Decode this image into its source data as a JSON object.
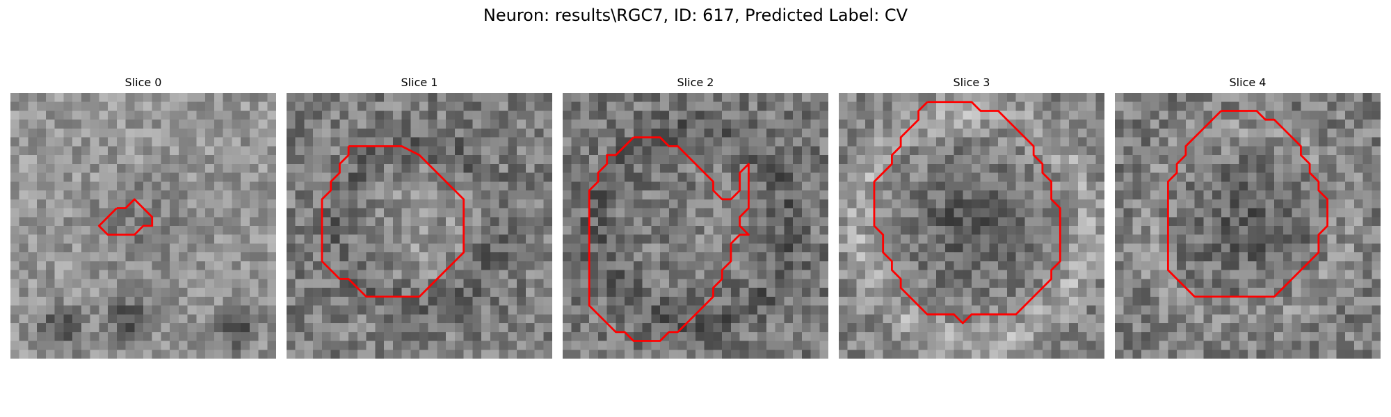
{
  "figure": {
    "title": "Neuron: results\\RGC7, ID: 617, Predicted Label: CV"
  },
  "contour_color": "#ff0000",
  "slices": [
    {
      "title": "Slice 0",
      "contour": [
        [
          12,
          13
        ],
        [
          13,
          13
        ],
        [
          14,
          12
        ],
        [
          15,
          13
        ],
        [
          16,
          14
        ],
        [
          16,
          15
        ],
        [
          15,
          15
        ],
        [
          14,
          16
        ],
        [
          13,
          16
        ],
        [
          12,
          16
        ],
        [
          11,
          16
        ],
        [
          10,
          15
        ],
        [
          11,
          14
        ],
        [
          12,
          13
        ]
      ]
    },
    {
      "title": "Slice 1",
      "contour": [
        [
          7,
          6
        ],
        [
          8,
          6
        ],
        [
          9,
          6
        ],
        [
          10,
          6
        ],
        [
          11,
          6
        ],
        [
          12,
          6
        ],
        [
          13,
          6
        ],
        [
          15,
          7
        ],
        [
          16,
          8
        ],
        [
          17,
          9
        ],
        [
          18,
          10
        ],
        [
          19,
          11
        ],
        [
          20,
          12
        ],
        [
          20,
          13
        ],
        [
          20,
          14
        ],
        [
          20,
          15
        ],
        [
          20,
          16
        ],
        [
          20,
          17
        ],
        [
          20,
          18
        ],
        [
          19,
          19
        ],
        [
          18,
          20
        ],
        [
          17,
          21
        ],
        [
          16,
          22
        ],
        [
          15,
          23
        ],
        [
          14,
          23
        ],
        [
          13,
          23
        ],
        [
          12,
          23
        ],
        [
          11,
          23
        ],
        [
          10,
          23
        ],
        [
          9,
          23
        ],
        [
          8,
          22
        ],
        [
          7,
          21
        ],
        [
          6,
          21
        ],
        [
          5,
          20
        ],
        [
          4,
          19
        ],
        [
          4,
          18
        ],
        [
          4,
          17
        ],
        [
          4,
          16
        ],
        [
          4,
          15
        ],
        [
          4,
          14
        ],
        [
          4,
          13
        ],
        [
          4,
          12
        ],
        [
          5,
          11
        ],
        [
          5,
          10
        ],
        [
          6,
          9
        ],
        [
          6,
          8
        ],
        [
          7,
          7
        ],
        [
          7,
          6
        ]
      ]
    },
    {
      "title": "Slice 2",
      "contour": [
        [
          8,
          5
        ],
        [
          9,
          5
        ],
        [
          10,
          5
        ],
        [
          11,
          5
        ],
        [
          12,
          6
        ],
        [
          13,
          6
        ],
        [
          14,
          7
        ],
        [
          15,
          8
        ],
        [
          16,
          9
        ],
        [
          17,
          10
        ],
        [
          17,
          11
        ],
        [
          18,
          12
        ],
        [
          19,
          12
        ],
        [
          20,
          11
        ],
        [
          20,
          10
        ],
        [
          20,
          9
        ],
        [
          21,
          8
        ],
        [
          21,
          9
        ],
        [
          21,
          10
        ],
        [
          21,
          11
        ],
        [
          21,
          12
        ],
        [
          21,
          13
        ],
        [
          20,
          14
        ],
        [
          20,
          15
        ],
        [
          21,
          16
        ],
        [
          20,
          16
        ],
        [
          19,
          17
        ],
        [
          19,
          18
        ],
        [
          19,
          19
        ],
        [
          18,
          20
        ],
        [
          18,
          21
        ],
        [
          17,
          22
        ],
        [
          17,
          23
        ],
        [
          16,
          24
        ],
        [
          15,
          25
        ],
        [
          14,
          26
        ],
        [
          13,
          27
        ],
        [
          12,
          27
        ],
        [
          11,
          28
        ],
        [
          10,
          28
        ],
        [
          9,
          28
        ],
        [
          8,
          28
        ],
        [
          7,
          27
        ],
        [
          6,
          27
        ],
        [
          5,
          26
        ],
        [
          4,
          25
        ],
        [
          3,
          24
        ],
        [
          3,
          23
        ],
        [
          3,
          22
        ],
        [
          3,
          21
        ],
        [
          3,
          20
        ],
        [
          3,
          19
        ],
        [
          3,
          18
        ],
        [
          3,
          17
        ],
        [
          3,
          16
        ],
        [
          3,
          15
        ],
        [
          3,
          14
        ],
        [
          3,
          13
        ],
        [
          3,
          12
        ],
        [
          3,
          11
        ],
        [
          4,
          10
        ],
        [
          4,
          9
        ],
        [
          5,
          8
        ],
        [
          5,
          7
        ],
        [
          6,
          7
        ],
        [
          7,
          6
        ],
        [
          8,
          5
        ]
      ]
    },
    {
      "title": "Slice 3",
      "contour": [
        [
          10,
          1
        ],
        [
          11,
          1
        ],
        [
          12,
          1
        ],
        [
          13,
          1
        ],
        [
          14,
          1
        ],
        [
          15,
          1
        ],
        [
          16,
          2
        ],
        [
          17,
          2
        ],
        [
          18,
          2
        ],
        [
          19,
          3
        ],
        [
          20,
          4
        ],
        [
          21,
          5
        ],
        [
          22,
          6
        ],
        [
          22,
          7
        ],
        [
          23,
          8
        ],
        [
          23,
          9
        ],
        [
          24,
          10
        ],
        [
          24,
          11
        ],
        [
          24,
          12
        ],
        [
          25,
          13
        ],
        [
          25,
          14
        ],
        [
          25,
          15
        ],
        [
          25,
          16
        ],
        [
          25,
          17
        ],
        [
          25,
          18
        ],
        [
          25,
          19
        ],
        [
          24,
          20
        ],
        [
          24,
          21
        ],
        [
          23,
          22
        ],
        [
          22,
          23
        ],
        [
          21,
          24
        ],
        [
          20,
          25
        ],
        [
          19,
          25
        ],
        [
          18,
          25
        ],
        [
          17,
          25
        ],
        [
          16,
          25
        ],
        [
          15,
          25
        ],
        [
          14,
          26
        ],
        [
          13,
          25
        ],
        [
          12,
          25
        ],
        [
          11,
          25
        ],
        [
          10,
          25
        ],
        [
          9,
          24
        ],
        [
          8,
          23
        ],
        [
          7,
          22
        ],
        [
          7,
          21
        ],
        [
          6,
          20
        ],
        [
          6,
          19
        ],
        [
          5,
          18
        ],
        [
          5,
          17
        ],
        [
          5,
          16
        ],
        [
          4,
          15
        ],
        [
          4,
          14
        ],
        [
          4,
          13
        ],
        [
          4,
          12
        ],
        [
          4,
          11
        ],
        [
          4,
          10
        ],
        [
          5,
          9
        ],
        [
          6,
          8
        ],
        [
          6,
          7
        ],
        [
          7,
          6
        ],
        [
          7,
          5
        ],
        [
          8,
          4
        ],
        [
          9,
          3
        ],
        [
          9,
          2
        ],
        [
          10,
          1
        ]
      ]
    },
    {
      "title": "Slice 4",
      "contour": [
        [
          12,
          2
        ],
        [
          13,
          2
        ],
        [
          14,
          2
        ],
        [
          15,
          2
        ],
        [
          16,
          2
        ],
        [
          17,
          3
        ],
        [
          18,
          3
        ],
        [
          19,
          4
        ],
        [
          20,
          5
        ],
        [
          21,
          6
        ],
        [
          21,
          7
        ],
        [
          22,
          8
        ],
        [
          22,
          9
        ],
        [
          23,
          10
        ],
        [
          23,
          11
        ],
        [
          24,
          12
        ],
        [
          24,
          13
        ],
        [
          24,
          14
        ],
        [
          24,
          15
        ],
        [
          23,
          16
        ],
        [
          23,
          17
        ],
        [
          23,
          18
        ],
        [
          22,
          19
        ],
        [
          21,
          20
        ],
        [
          20,
          21
        ],
        [
          19,
          22
        ],
        [
          18,
          23
        ],
        [
          17,
          23
        ],
        [
          16,
          23
        ],
        [
          15,
          23
        ],
        [
          14,
          23
        ],
        [
          13,
          23
        ],
        [
          12,
          23
        ],
        [
          11,
          23
        ],
        [
          10,
          23
        ],
        [
          9,
          23
        ],
        [
          8,
          22
        ],
        [
          7,
          21
        ],
        [
          6,
          20
        ],
        [
          6,
          19
        ],
        [
          6,
          18
        ],
        [
          6,
          17
        ],
        [
          6,
          16
        ],
        [
          6,
          15
        ],
        [
          6,
          14
        ],
        [
          6,
          13
        ],
        [
          6,
          12
        ],
        [
          6,
          11
        ],
        [
          6,
          10
        ],
        [
          7,
          9
        ],
        [
          7,
          8
        ],
        [
          8,
          7
        ],
        [
          8,
          6
        ],
        [
          9,
          5
        ],
        [
          10,
          4
        ],
        [
          11,
          3
        ],
        [
          12,
          2
        ]
      ]
    }
  ]
}
